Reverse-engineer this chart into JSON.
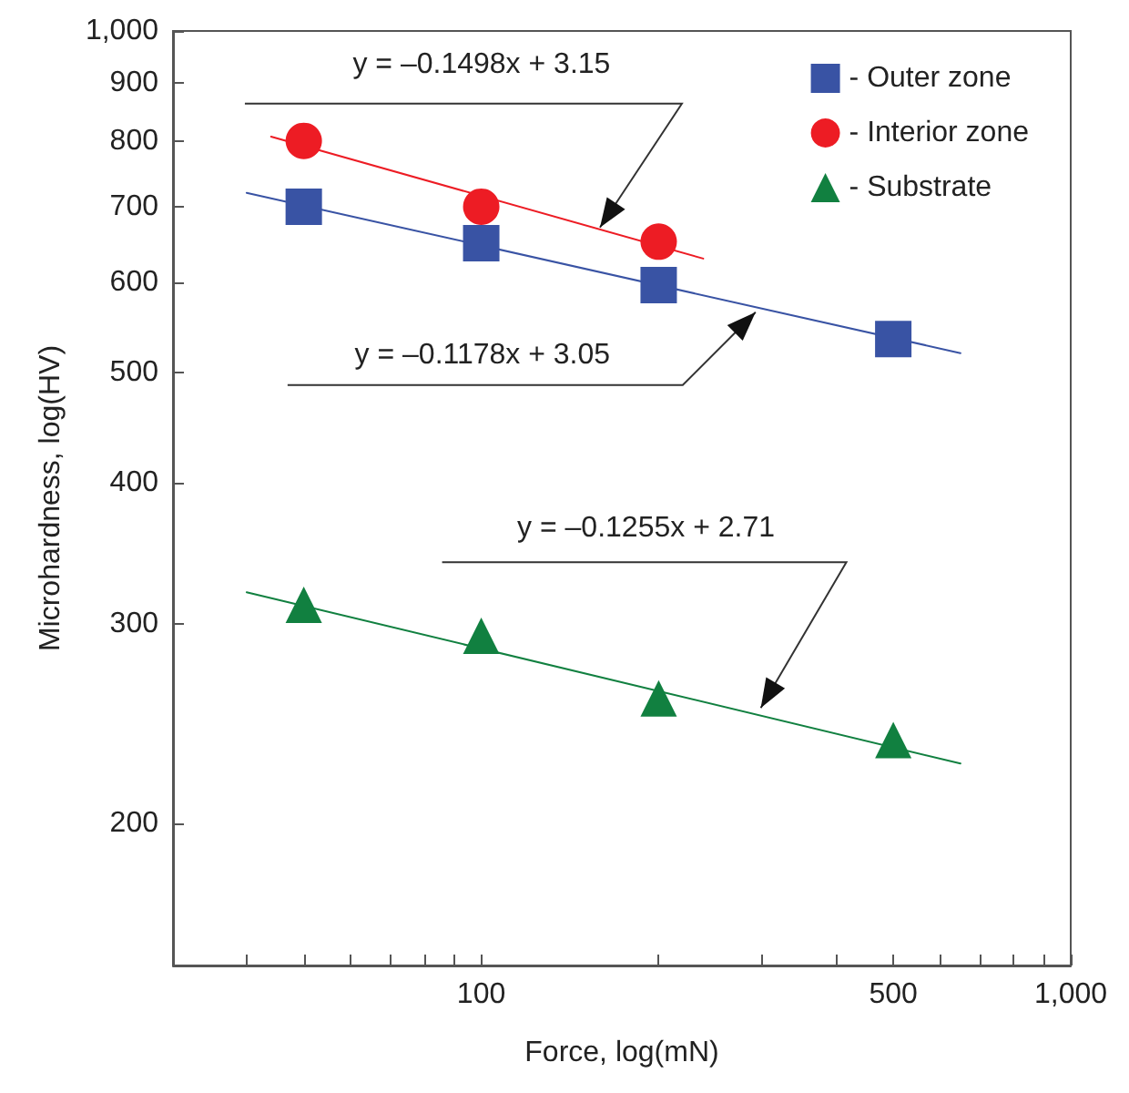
{
  "chart_data": {
    "type": "scatter",
    "xlabel": "Force, log(mN)",
    "ylabel": "Microhardness, log(HV)",
    "log": "xy",
    "grid": false,
    "legend": "top right",
    "xlim": [
      30,
      1000
    ],
    "xticks": [
      {
        "value": 30,
        "label": null
      },
      {
        "value": 40,
        "label": null
      },
      {
        "value": 50,
        "label": null
      },
      {
        "value": 60,
        "label": null
      },
      {
        "value": 70,
        "label": null
      },
      {
        "value": 80,
        "label": null
      },
      {
        "value": 90,
        "label": null
      },
      100,
      {
        "value": 200,
        "label": null
      },
      {
        "value": 300,
        "label": null
      },
      {
        "value": 400,
        "label": null
      },
      500,
      {
        "value": 600,
        "label": null
      },
      {
        "value": 700,
        "label": null
      },
      {
        "value": 800,
        "label": null
      },
      {
        "value": 900,
        "label": null
      },
      {
        "value": 1000,
        "label": "1,000"
      }
    ],
    "ylim": [
      150,
      1000
    ],
    "yticks": [
      200,
      300,
      400,
      500,
      600,
      700,
      800,
      900,
      {
        "value": 1000,
        "label": "1,000"
      }
    ],
    "series": [
      {
        "name": "- Outer zone",
        "color": "#3953a4",
        "marker": "square",
        "x": [
          50,
          100,
          200,
          500
        ],
        "values": [
          700,
          650,
          597,
          535
        ]
      },
      {
        "name": "- Interior zone",
        "color": "#ed1c24",
        "marker": "circle",
        "x": [
          50,
          100,
          200
        ],
        "values": [
          800,
          700,
          652
        ]
      },
      {
        "name": "- Substrate",
        "color": "#118040",
        "marker": "triangle",
        "x": [
          50,
          100,
          200,
          500
        ],
        "values": [
          312,
          293,
          258,
          237
        ]
      },
      {
        "type": "line",
        "color": "#ed1c24",
        "marker": "none",
        "x": [
          44,
          238
        ],
        "values": [
          807,
          630
        ]
      },
      {
        "type": "line",
        "color": "#3953a4",
        "marker": "none",
        "x": [
          40,
          650
        ],
        "values": [
          720,
          520
        ]
      },
      {
        "type": "line",
        "color": "#118040",
        "marker": "none",
        "x": [
          40,
          650
        ],
        "values": [
          320,
          226
        ]
      }
    ],
    "annotations": [
      {
        "text": "y = –0.1498x + 3.15",
        "x": 159,
        "y": 671
      },
      {
        "text": "y = –0.1178x + 3.05",
        "x": 292,
        "y": 565
      },
      {
        "text": "y = –0.1255x + 2.71",
        "x": 298,
        "y": 253
      }
    ]
  }
}
